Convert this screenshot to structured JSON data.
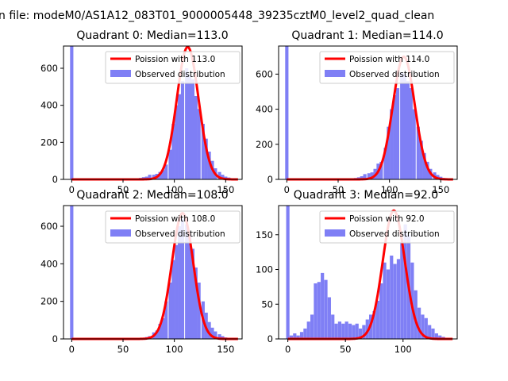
{
  "figure": {
    "suptitle": "n file: modeM0/AS1A12_083T01_9000005448_39235cztM0_level2_quad_clean"
  },
  "colors": {
    "hist": "#7f7ff5",
    "fit": "#ff0000",
    "axis": "#000000",
    "legend_border": "#cccccc"
  },
  "chart_data": [
    {
      "type": "bar",
      "title": "Quadrant 0: Median=113.0",
      "xlim": [
        -8,
        166
      ],
      "ylim": [
        0,
        720
      ],
      "xticks": [
        0,
        50,
        100,
        150
      ],
      "yticks": [
        0,
        200,
        400,
        600
      ],
      "legend_position": "upper-right",
      "series": [
        {
          "name": "Poission with 113.0",
          "kind": "line",
          "mean": 113.0,
          "peak": 715
        },
        {
          "name": "Observed distribution",
          "kind": "histogram",
          "bin_width": 3.2,
          "bins": [
            {
              "x": 0,
              "y": 720
            },
            {
              "x": 54,
              "y": 2
            },
            {
              "x": 57,
              "y": 2
            },
            {
              "x": 60,
              "y": 3
            },
            {
              "x": 64,
              "y": 4
            },
            {
              "x": 67,
              "y": 8
            },
            {
              "x": 70,
              "y": 12
            },
            {
              "x": 73,
              "y": 15
            },
            {
              "x": 76,
              "y": 25
            },
            {
              "x": 80,
              "y": 25
            },
            {
              "x": 83,
              "y": 30
            },
            {
              "x": 86,
              "y": 40
            },
            {
              "x": 89,
              "y": 50
            },
            {
              "x": 92,
              "y": 80
            },
            {
              "x": 96,
              "y": 160
            },
            {
              "x": 99,
              "y": 300
            },
            {
              "x": 102,
              "y": 400
            },
            {
              "x": 105,
              "y": 460
            },
            {
              "x": 108,
              "y": 530
            },
            {
              "x": 112,
              "y": 600
            },
            {
              "x": 115,
              "y": 560
            },
            {
              "x": 118,
              "y": 540
            },
            {
              "x": 121,
              "y": 450
            },
            {
              "x": 124,
              "y": 380
            },
            {
              "x": 128,
              "y": 300
            },
            {
              "x": 131,
              "y": 220
            },
            {
              "x": 134,
              "y": 150
            },
            {
              "x": 137,
              "y": 100
            },
            {
              "x": 140,
              "y": 60
            },
            {
              "x": 144,
              "y": 40
            },
            {
              "x": 147,
              "y": 25
            },
            {
              "x": 150,
              "y": 15
            },
            {
              "x": 153,
              "y": 10
            },
            {
              "x": 156,
              "y": 5
            }
          ]
        }
      ]
    },
    {
      "type": "bar",
      "title": "Quadrant 1: Median=114.0",
      "xlim": [
        -8,
        166
      ],
      "ylim": [
        0,
        760
      ],
      "xticks": [
        0,
        50,
        100,
        150
      ],
      "yticks": [
        0,
        200,
        400,
        600
      ],
      "legend_position": "upper-right",
      "series": [
        {
          "name": "Poission with 114.0",
          "kind": "line",
          "mean": 114.0,
          "peak": 700
        },
        {
          "name": "Observed distribution",
          "kind": "histogram",
          "bin_width": 3.2,
          "bins": [
            {
              "x": 0,
              "y": 760
            },
            {
              "x": 54,
              "y": 2
            },
            {
              "x": 57,
              "y": 2
            },
            {
              "x": 60,
              "y": 3
            },
            {
              "x": 64,
              "y": 5
            },
            {
              "x": 67,
              "y": 8
            },
            {
              "x": 70,
              "y": 12
            },
            {
              "x": 73,
              "y": 18
            },
            {
              "x": 76,
              "y": 30
            },
            {
              "x": 80,
              "y": 35
            },
            {
              "x": 83,
              "y": 40
            },
            {
              "x": 86,
              "y": 60
            },
            {
              "x": 89,
              "y": 90
            },
            {
              "x": 92,
              "y": 100
            },
            {
              "x": 96,
              "y": 180
            },
            {
              "x": 99,
              "y": 300
            },
            {
              "x": 102,
              "y": 400
            },
            {
              "x": 105,
              "y": 480
            },
            {
              "x": 108,
              "y": 520
            },
            {
              "x": 112,
              "y": 610
            },
            {
              "x": 115,
              "y": 600
            },
            {
              "x": 118,
              "y": 560
            },
            {
              "x": 121,
              "y": 520
            },
            {
              "x": 124,
              "y": 400
            },
            {
              "x": 128,
              "y": 300
            },
            {
              "x": 131,
              "y": 220
            },
            {
              "x": 134,
              "y": 150
            },
            {
              "x": 137,
              "y": 100
            },
            {
              "x": 140,
              "y": 60
            },
            {
              "x": 144,
              "y": 40
            },
            {
              "x": 147,
              "y": 25
            },
            {
              "x": 150,
              "y": 15
            },
            {
              "x": 153,
              "y": 8
            },
            {
              "x": 156,
              "y": 4
            }
          ]
        }
      ]
    },
    {
      "type": "bar",
      "title": "Quadrant 2: Median=108.0",
      "xlim": [
        -8,
        166
      ],
      "ylim": [
        0,
        710
      ],
      "xticks": [
        0,
        50,
        100,
        150
      ],
      "yticks": [
        0,
        200,
        400,
        600
      ],
      "legend_position": "upper-right",
      "series": [
        {
          "name": "Poission with 108.0",
          "kind": "line",
          "mean": 108.0,
          "peak": 670
        },
        {
          "name": "Observed distribution",
          "kind": "histogram",
          "bin_width": 3.2,
          "bins": [
            {
              "x": 0,
              "y": 710
            },
            {
              "x": 64,
              "y": 2
            },
            {
              "x": 67,
              "y": 3
            },
            {
              "x": 70,
              "y": 5
            },
            {
              "x": 73,
              "y": 10
            },
            {
              "x": 76,
              "y": 15
            },
            {
              "x": 80,
              "y": 35
            },
            {
              "x": 83,
              "y": 45
            },
            {
              "x": 86,
              "y": 80
            },
            {
              "x": 89,
              "y": 110
            },
            {
              "x": 92,
              "y": 200
            },
            {
              "x": 96,
              "y": 300
            },
            {
              "x": 99,
              "y": 420
            },
            {
              "x": 102,
              "y": 500
            },
            {
              "x": 105,
              "y": 600
            },
            {
              "x": 108,
              "y": 640
            },
            {
              "x": 112,
              "y": 610
            },
            {
              "x": 115,
              "y": 560
            },
            {
              "x": 118,
              "y": 480
            },
            {
              "x": 121,
              "y": 380
            },
            {
              "x": 124,
              "y": 300
            },
            {
              "x": 128,
              "y": 200
            },
            {
              "x": 131,
              "y": 140
            },
            {
              "x": 134,
              "y": 90
            },
            {
              "x": 137,
              "y": 60
            },
            {
              "x": 140,
              "y": 40
            },
            {
              "x": 144,
              "y": 25
            },
            {
              "x": 147,
              "y": 15
            },
            {
              "x": 150,
              "y": 8
            },
            {
              "x": 153,
              "y": 4
            }
          ]
        }
      ]
    },
    {
      "type": "bar",
      "title": "Quadrant 3: Median=92.0",
      "xlim": [
        -8,
        147
      ],
      "ylim": [
        0,
        192
      ],
      "xticks": [
        0,
        50,
        100
      ],
      "yticks": [
        0,
        50,
        100,
        150
      ],
      "legend_position": "upper-right",
      "series": [
        {
          "name": "Poission with 92.0",
          "kind": "line",
          "mean": 92.0,
          "peak": 185
        },
        {
          "name": "Observed distribution",
          "kind": "histogram",
          "bin_width": 2.9,
          "bins": [
            {
              "x": 0,
              "y": 192
            },
            {
              "x": 3,
              "y": 5
            },
            {
              "x": 6,
              "y": 8
            },
            {
              "x": 9,
              "y": 5
            },
            {
              "x": 12,
              "y": 10
            },
            {
              "x": 15,
              "y": 15
            },
            {
              "x": 18,
              "y": 25
            },
            {
              "x": 21,
              "y": 35
            },
            {
              "x": 24,
              "y": 80
            },
            {
              "x": 27,
              "y": 82
            },
            {
              "x": 30,
              "y": 95
            },
            {
              "x": 33,
              "y": 85
            },
            {
              "x": 36,
              "y": 60
            },
            {
              "x": 39,
              "y": 35
            },
            {
              "x": 42,
              "y": 22
            },
            {
              "x": 45,
              "y": 25
            },
            {
              "x": 48,
              "y": 22
            },
            {
              "x": 51,
              "y": 25
            },
            {
              "x": 54,
              "y": 22
            },
            {
              "x": 57,
              "y": 20
            },
            {
              "x": 60,
              "y": 22
            },
            {
              "x": 63,
              "y": 15
            },
            {
              "x": 66,
              "y": 20
            },
            {
              "x": 69,
              "y": 28
            },
            {
              "x": 72,
              "y": 35
            },
            {
              "x": 75,
              "y": 40
            },
            {
              "x": 78,
              "y": 55
            },
            {
              "x": 81,
              "y": 80
            },
            {
              "x": 84,
              "y": 110
            },
            {
              "x": 87,
              "y": 100
            },
            {
              "x": 90,
              "y": 120
            },
            {
              "x": 93,
              "y": 108
            },
            {
              "x": 96,
              "y": 115
            },
            {
              "x": 99,
              "y": 140
            },
            {
              "x": 102,
              "y": 165
            },
            {
              "x": 105,
              "y": 150
            },
            {
              "x": 108,
              "y": 110
            },
            {
              "x": 111,
              "y": 70
            },
            {
              "x": 114,
              "y": 45
            },
            {
              "x": 117,
              "y": 35
            },
            {
              "x": 120,
              "y": 30
            },
            {
              "x": 123,
              "y": 20
            },
            {
              "x": 126,
              "y": 15
            },
            {
              "x": 129,
              "y": 8
            },
            {
              "x": 132,
              "y": 5
            },
            {
              "x": 135,
              "y": 3
            }
          ]
        }
      ]
    }
  ]
}
